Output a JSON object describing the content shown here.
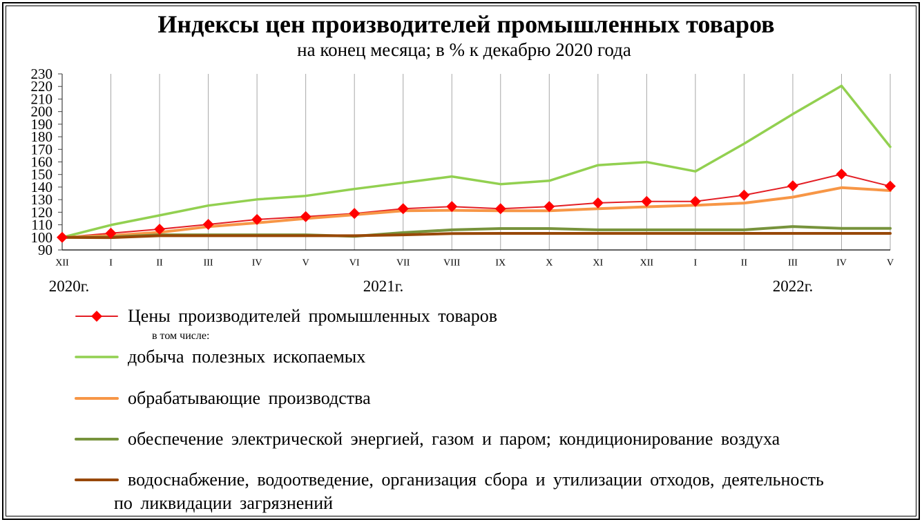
{
  "chart_data": {
    "type": "line",
    "title": "Индексы цен производителей промышленных товаров",
    "subtitle": "на конец месяца; в % к декабрю 2020 года",
    "categories": [
      "XII",
      "I",
      "II",
      "III",
      "IV",
      "V",
      "VI",
      "VII",
      "VIII",
      "IX",
      "X",
      "XI",
      "XII",
      "I",
      "II",
      "III",
      "IV",
      "V"
    ],
    "year_labels": [
      "2020г.",
      "2021г.",
      "2022г."
    ],
    "xlabel": "",
    "ylabel": "",
    "ylim": [
      90,
      230
    ],
    "yticks": [
      90,
      100,
      110,
      120,
      130,
      140,
      150,
      160,
      170,
      180,
      190,
      200,
      210,
      220,
      230
    ],
    "grid": "vertical",
    "legend_position": "bottom",
    "legend_note": "в том числе:",
    "series": [
      {
        "name": "Цены производителей промышленных товаров",
        "color": "#e31e24",
        "marker": "diamond",
        "marker_color": "#ff0000",
        "values": [
          100,
          103.3,
          106.5,
          110.3,
          114.2,
          116.5,
          119.0,
          122.8,
          124.5,
          122.8,
          124.5,
          127.4,
          128.6,
          128.6,
          133.6,
          141.0,
          150.3,
          140.7
        ]
      },
      {
        "name": "добыча полезных ископаемых",
        "color": "#92d050",
        "values": [
          100,
          109.8,
          117.5,
          125.3,
          130.2,
          133.0,
          138.5,
          143.4,
          148.4,
          142.3,
          145.0,
          157.4,
          159.9,
          152.5,
          174.5,
          198.0,
          220.5,
          172.0
        ]
      },
      {
        "name": "обрабатывающие производства",
        "color": "#f79646",
        "values": [
          100,
          101.5,
          104.0,
          108.5,
          111.5,
          115.0,
          118.0,
          121.2,
          121.5,
          121.2,
          121.2,
          122.8,
          124.3,
          125.5,
          127.3,
          132.0,
          139.5,
          137.2
        ]
      },
      {
        "name": "обеспечение электрической энергией, газом и паром; кондиционирование воздуха",
        "color": "#77933c",
        "values": [
          100,
          100.2,
          102.0,
          102.0,
          102.0,
          102.0,
          100.8,
          103.8,
          106.0,
          107.0,
          107.0,
          106.0,
          106.0,
          106.0,
          106.0,
          108.6,
          107.2,
          107.2
        ]
      },
      {
        "name": "водоснабжение, водоотведение, организация сбора и утилизации отходов, деятельность\nпо ликвидации загрязнений",
        "color": "#984807",
        "values": [
          100,
          99.8,
          101.3,
          101.3,
          101.3,
          101.3,
          101.3,
          102.0,
          103.0,
          103.2,
          103.2,
          103.2,
          103.2,
          103.2,
          103.2,
          103.2,
          103.2,
          103.2
        ]
      }
    ]
  }
}
